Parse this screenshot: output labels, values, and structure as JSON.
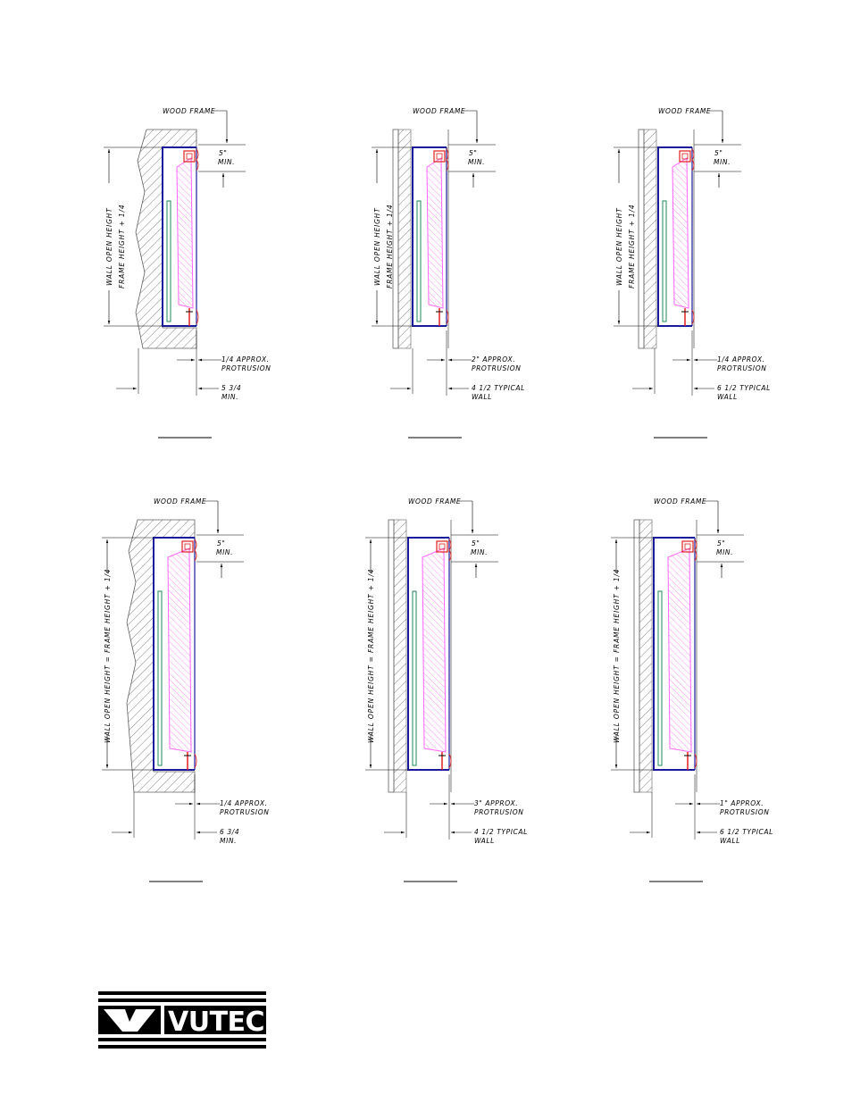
{
  "brand": {
    "name": "VUTEC"
  },
  "colors": {
    "frame": "#1a1a9c",
    "hatch": "#ff66ff",
    "bracket": "#e0201a",
    "inner": "#1a8a5a",
    "wall": "#606060"
  },
  "details": [
    {
      "wood_frame": "WOOD FRAME",
      "frame_clearance": "5\"",
      "frame_clearance_min": "MIN.",
      "height_label_1": "WALL OPEN HEIGHT",
      "height_label_2": "FRAME HEIGHT + 1/4",
      "protrusion": "1/4 APPROX.",
      "protrusion_sub": "PROTRUSION",
      "depth": "5 3/4",
      "depth_sub": "MIN."
    },
    {
      "wood_frame": "WOOD FRAME",
      "frame_clearance": "5\"",
      "frame_clearance_min": "MIN.",
      "height_label_1": "WALL OPEN HEIGHT",
      "height_label_2": "FRAME HEIGHT + 1/4",
      "protrusion": "2\" APPROX.",
      "protrusion_sub": "PROTRUSION",
      "depth": "4 1/2 TYPICAL",
      "depth_sub": "WALL"
    },
    {
      "wood_frame": "WOOD FRAME",
      "frame_clearance": "5\"",
      "frame_clearance_min": "MIN.",
      "height_label_1": "WALL OPEN HEIGHT",
      "height_label_2": "FRAME HEIGHT + 1/4",
      "protrusion": "1/4 APPROX.",
      "protrusion_sub": "PROTRUSION",
      "depth": "6 1/2 TYPICAL",
      "depth_sub": "WALL"
    },
    {
      "wood_frame": "WOOD FRAME",
      "frame_clearance": "5\"",
      "frame_clearance_min": "MIN.",
      "height_label_1": "WALL OPEN HEIGHT = FRAME HEIGHT + 1/4",
      "height_label_2": "",
      "protrusion": "1/4 APPROX.",
      "protrusion_sub": "PROTRUSION",
      "depth": "6 3/4",
      "depth_sub": "MIN."
    },
    {
      "wood_frame": "WOOD FRAME",
      "frame_clearance": "5\"",
      "frame_clearance_min": "MIN.",
      "height_label_1": "WALL OPEN HEIGHT = FRAME HEIGHT + 1/4",
      "height_label_2": "",
      "protrusion": "3\" APPROX.",
      "protrusion_sub": "PROTRUSION",
      "depth": "4 1/2 TYPICAL",
      "depth_sub": "WALL"
    },
    {
      "wood_frame": "WOOD FRAME",
      "frame_clearance": "5\"",
      "frame_clearance_min": "MIN.",
      "height_label_1": "WALL OPEN HEIGHT = FRAME HEIGHT + 1/4",
      "height_label_2": "",
      "protrusion": "1\" APPROX.",
      "protrusion_sub": "PROTRUSION",
      "depth": "6 1/2 TYPICAL",
      "depth_sub": "WALL"
    }
  ]
}
